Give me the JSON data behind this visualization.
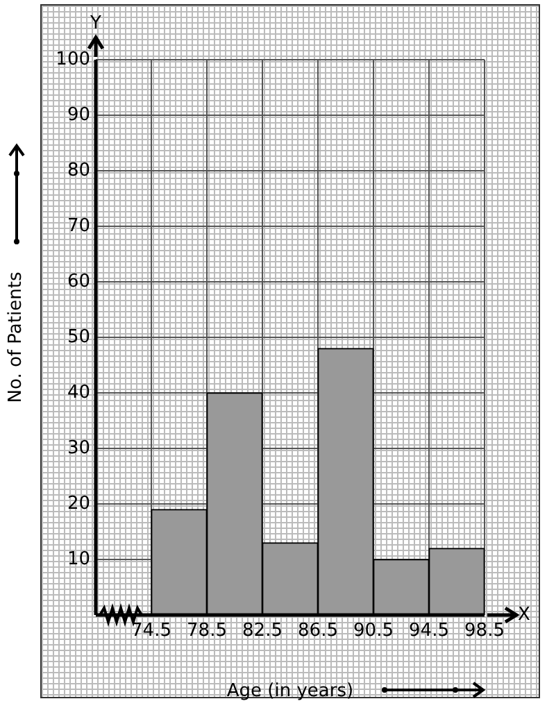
{
  "chart_data": {
    "type": "histogram",
    "xlabel": "Age (in years)",
    "ylabel": "No. of Patients",
    "bins": [
      74.5,
      78.5,
      82.5,
      86.5,
      90.5,
      94.5,
      98.5
    ],
    "values": [
      19,
      40,
      13,
      48,
      10,
      12
    ],
    "color": "#999999",
    "xlim": [
      70.5,
      98.5
    ],
    "xticks": [
      74.5,
      78.5,
      82.5,
      86.5,
      90.5,
      94.5,
      98.5
    ],
    "ylim": [
      0,
      100
    ],
    "yticks": [
      {
        "value": 0,
        "label": null
      },
      10,
      20,
      30,
      40,
      50,
      60,
      70,
      80,
      90,
      100
    ],
    "grid": true,
    "annotations": [
      "X",
      "Y"
    ]
  }
}
